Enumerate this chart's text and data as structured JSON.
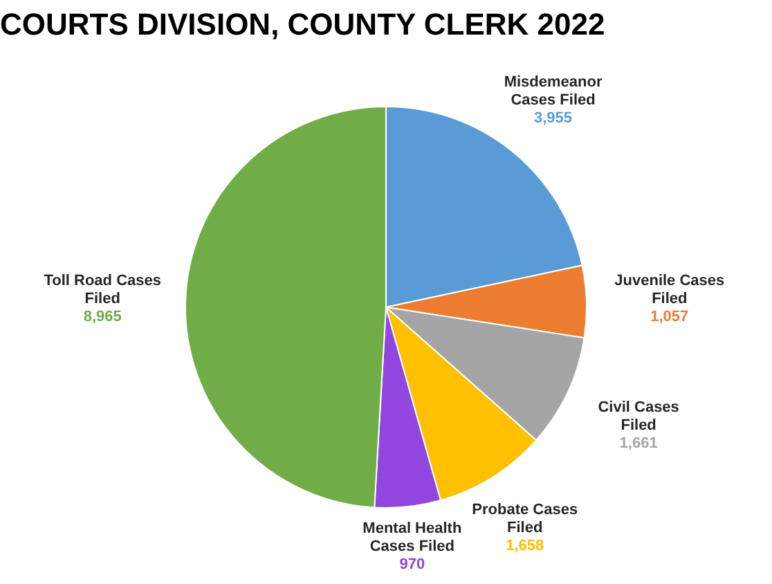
{
  "chart_data": {
    "type": "pie",
    "title": "COURTS DIVISION, COUNTY CLERK 2022",
    "categories": [
      "Misdemeanor Cases Filed",
      "Juvenile Cases Filed",
      "Civil Cases Filed",
      "Probate Cases Filed",
      "Mental Health Cases Filed",
      "Toll Road Cases Filed"
    ],
    "values": [
      3955,
      1057,
      1661,
      1658,
      970,
      8965
    ],
    "colors": [
      "#5b9bd5",
      "#ed7d31",
      "#a5a5a5",
      "#ffc000",
      "#9146e0",
      "#70ad47"
    ],
    "value_labels": [
      "3,955",
      "1,057",
      "1,661",
      "1,658",
      "970",
      "8,965"
    ],
    "legend": false
  }
}
